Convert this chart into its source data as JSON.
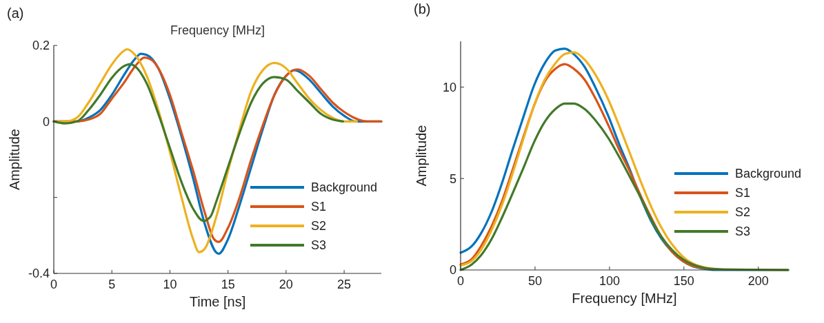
{
  "chart_data": [
    {
      "type": "line",
      "title": "Frequency [MHz]",
      "xlabel": "Time [ns]",
      "ylabel": "Amplitude",
      "annotations": [
        "(a)"
      ],
      "xlim": [
        0,
        28.2
      ],
      "xticks": [
        0,
        5,
        10,
        15,
        20,
        25
      ],
      "ylim": [
        -0.4,
        0.2
      ],
      "yticks": [
        0.2,
        0,
        {
          "value": -0.2,
          "label": null
        },
        -0.4
      ],
      "grid": false,
      "legend": "bottom right",
      "line_style": "solid",
      "series": [
        {
          "name": "Background",
          "color": "#0072bd",
          "x": [
            0,
            1,
            2,
            3,
            4,
            5,
            6,
            7,
            7.5,
            8,
            9,
            10,
            11,
            12,
            13,
            14,
            14.2,
            15,
            16,
            17,
            18,
            19,
            20,
            20.7,
            21,
            22,
            23,
            24,
            25,
            26,
            28.2
          ],
          "values": [
            0,
            0,
            0,
            0.01,
            0.03,
            0.07,
            0.12,
            0.165,
            0.178,
            0.175,
            0.14,
            0.06,
            -0.04,
            -0.15,
            -0.27,
            -0.345,
            -0.348,
            -0.31,
            -0.22,
            -0.12,
            -0.02,
            0.07,
            0.12,
            0.135,
            0.133,
            0.11,
            0.075,
            0.04,
            0.015,
            0,
            0
          ]
        },
        {
          "name": "S1",
          "color": "#d95319",
          "x": [
            0,
            2,
            3,
            4,
            5,
            6,
            7,
            7.8,
            8.5,
            9,
            10,
            11,
            12,
            13,
            13.8,
            14.2,
            15,
            16,
            17,
            18,
            19,
            20,
            21,
            22,
            23,
            24,
            25,
            26,
            27,
            28.2
          ],
          "values": [
            0,
            0,
            0.005,
            0.02,
            0.06,
            0.1,
            0.145,
            0.168,
            0.16,
            0.14,
            0.07,
            -0.03,
            -0.13,
            -0.24,
            -0.31,
            -0.317,
            -0.28,
            -0.2,
            -0.1,
            -0.01,
            0.07,
            0.12,
            0.137,
            0.12,
            0.085,
            0.05,
            0.025,
            0.008,
            0,
            0
          ]
        },
        {
          "name": "S2",
          "color": "#edb120",
          "x": [
            0,
            1,
            2,
            3,
            4,
            5,
            6,
            6.3,
            7,
            8,
            9,
            10,
            11,
            12,
            12.5,
            13,
            14,
            15,
            16,
            17,
            18,
            19,
            20,
            21,
            22,
            23,
            24,
            25,
            26.1
          ],
          "values": [
            0,
            0,
            0.01,
            0.05,
            0.1,
            0.15,
            0.185,
            0.19,
            0.175,
            0.12,
            0.03,
            -0.08,
            -0.2,
            -0.31,
            -0.344,
            -0.335,
            -0.25,
            -0.13,
            -0.02,
            0.08,
            0.135,
            0.154,
            0.14,
            0.1,
            0.06,
            0.03,
            0.01,
            0,
            0
          ]
        },
        {
          "name": "S3",
          "color": "#43792a",
          "x": [
            0,
            1,
            2,
            3,
            4,
            5,
            6,
            6.6,
            7,
            8,
            9,
            10,
            11,
            12,
            12.9,
            13.5,
            14,
            15,
            16,
            17,
            18,
            19,
            20,
            21,
            22,
            23,
            24,
            24.9
          ],
          "values": [
            0,
            -0.005,
            0,
            0.03,
            0.07,
            0.115,
            0.145,
            0.151,
            0.145,
            0.1,
            0.02,
            -0.07,
            -0.16,
            -0.23,
            -0.262,
            -0.25,
            -0.21,
            -0.12,
            -0.03,
            0.05,
            0.1,
            0.117,
            0.11,
            0.08,
            0.05,
            0.02,
            0.005,
            0
          ]
        }
      ]
    },
    {
      "type": "line",
      "xlabel": "Frequency [MHz]",
      "ylabel": "Amplitude",
      "annotations": [
        "(b)"
      ],
      "xlim": [
        0,
        220
      ],
      "xticks": [
        0,
        50,
        100,
        150,
        200
      ],
      "ylim": [
        0,
        12.5
      ],
      "yticks": [
        0,
        5,
        10
      ],
      "grid": false,
      "legend": "right",
      "line_style": "solid",
      "series": [
        {
          "name": "Background",
          "color": "#0072bd",
          "x": [
            0,
            7.5,
            13.7,
            20.9,
            28,
            35,
            42.3,
            49.4,
            56.5,
            63.7,
            69.9,
            76,
            83.3,
            90.4,
            99.3,
            106.4,
            113.6,
            120.7,
            127.8,
            135,
            142,
            149,
            156,
            163.5,
            170.6,
            220
          ],
          "values": [
            0.94,
            1.3,
            2.0,
            3.2,
            4.8,
            6.6,
            8.4,
            10.1,
            11.3,
            12.0,
            12.1,
            11.8,
            11.1,
            10.0,
            8.4,
            6.9,
            5.5,
            4.0,
            2.7,
            1.7,
            1.0,
            0.5,
            0.2,
            0.07,
            0,
            0
          ]
        },
        {
          "name": "S1",
          "color": "#d95319",
          "x": [
            0,
            7.5,
            13.7,
            20.9,
            28,
            35,
            42.3,
            49.4,
            56.5,
            63.7,
            69.9,
            76,
            83.3,
            90.4,
            99.3,
            106.4,
            113.6,
            120.7,
            127.8,
            135,
            142,
            149,
            156,
            163.5,
            170.6
          ],
          "values": [
            0.3,
            0.6,
            1.3,
            2.4,
            3.8,
            5.5,
            7.3,
            9.0,
            10.3,
            11.0,
            11.25,
            11.0,
            10.4,
            9.4,
            7.9,
            6.6,
            5.4,
            4.1,
            2.9,
            1.8,
            1.0,
            0.5,
            0.22,
            0.1,
            0.03
          ]
        },
        {
          "name": "S2",
          "color": "#edb120",
          "x": [
            0,
            7.5,
            13.7,
            20.9,
            28,
            35,
            42.3,
            49.4,
            56.5,
            63.7,
            69.9,
            76,
            83.3,
            90.4,
            99.3,
            106.4,
            113.6,
            120.7,
            127.8,
            135,
            142,
            149,
            156,
            163.5,
            170.6,
            180,
            220
          ],
          "values": [
            0.25,
            0.5,
            1.1,
            2.2,
            3.6,
            5.3,
            7.2,
            9.0,
            10.4,
            11.3,
            11.8,
            11.9,
            11.5,
            10.7,
            9.3,
            7.9,
            6.4,
            4.9,
            3.5,
            2.3,
            1.4,
            0.75,
            0.35,
            0.15,
            0.06,
            0.02,
            0
          ]
        },
        {
          "name": "S3",
          "color": "#43792a",
          "x": [
            0,
            7.5,
            13.7,
            20.9,
            28,
            35,
            42.3,
            49.4,
            56.5,
            63.7,
            69.9,
            76,
            83.3,
            90.4,
            99.3,
            106.4,
            113.6,
            120.7,
            127.8,
            135,
            142,
            149,
            156,
            163.5,
            170.6,
            180,
            220
          ],
          "values": [
            0,
            0.3,
            0.8,
            1.7,
            2.9,
            4.2,
            5.6,
            7.0,
            8.1,
            8.8,
            9.1,
            9.1,
            8.8,
            8.2,
            7.2,
            6.2,
            5.1,
            4.0,
            2.8,
            1.8,
            1.1,
            0.6,
            0.3,
            0.12,
            0.05,
            0.02,
            0
          ]
        }
      ]
    }
  ]
}
